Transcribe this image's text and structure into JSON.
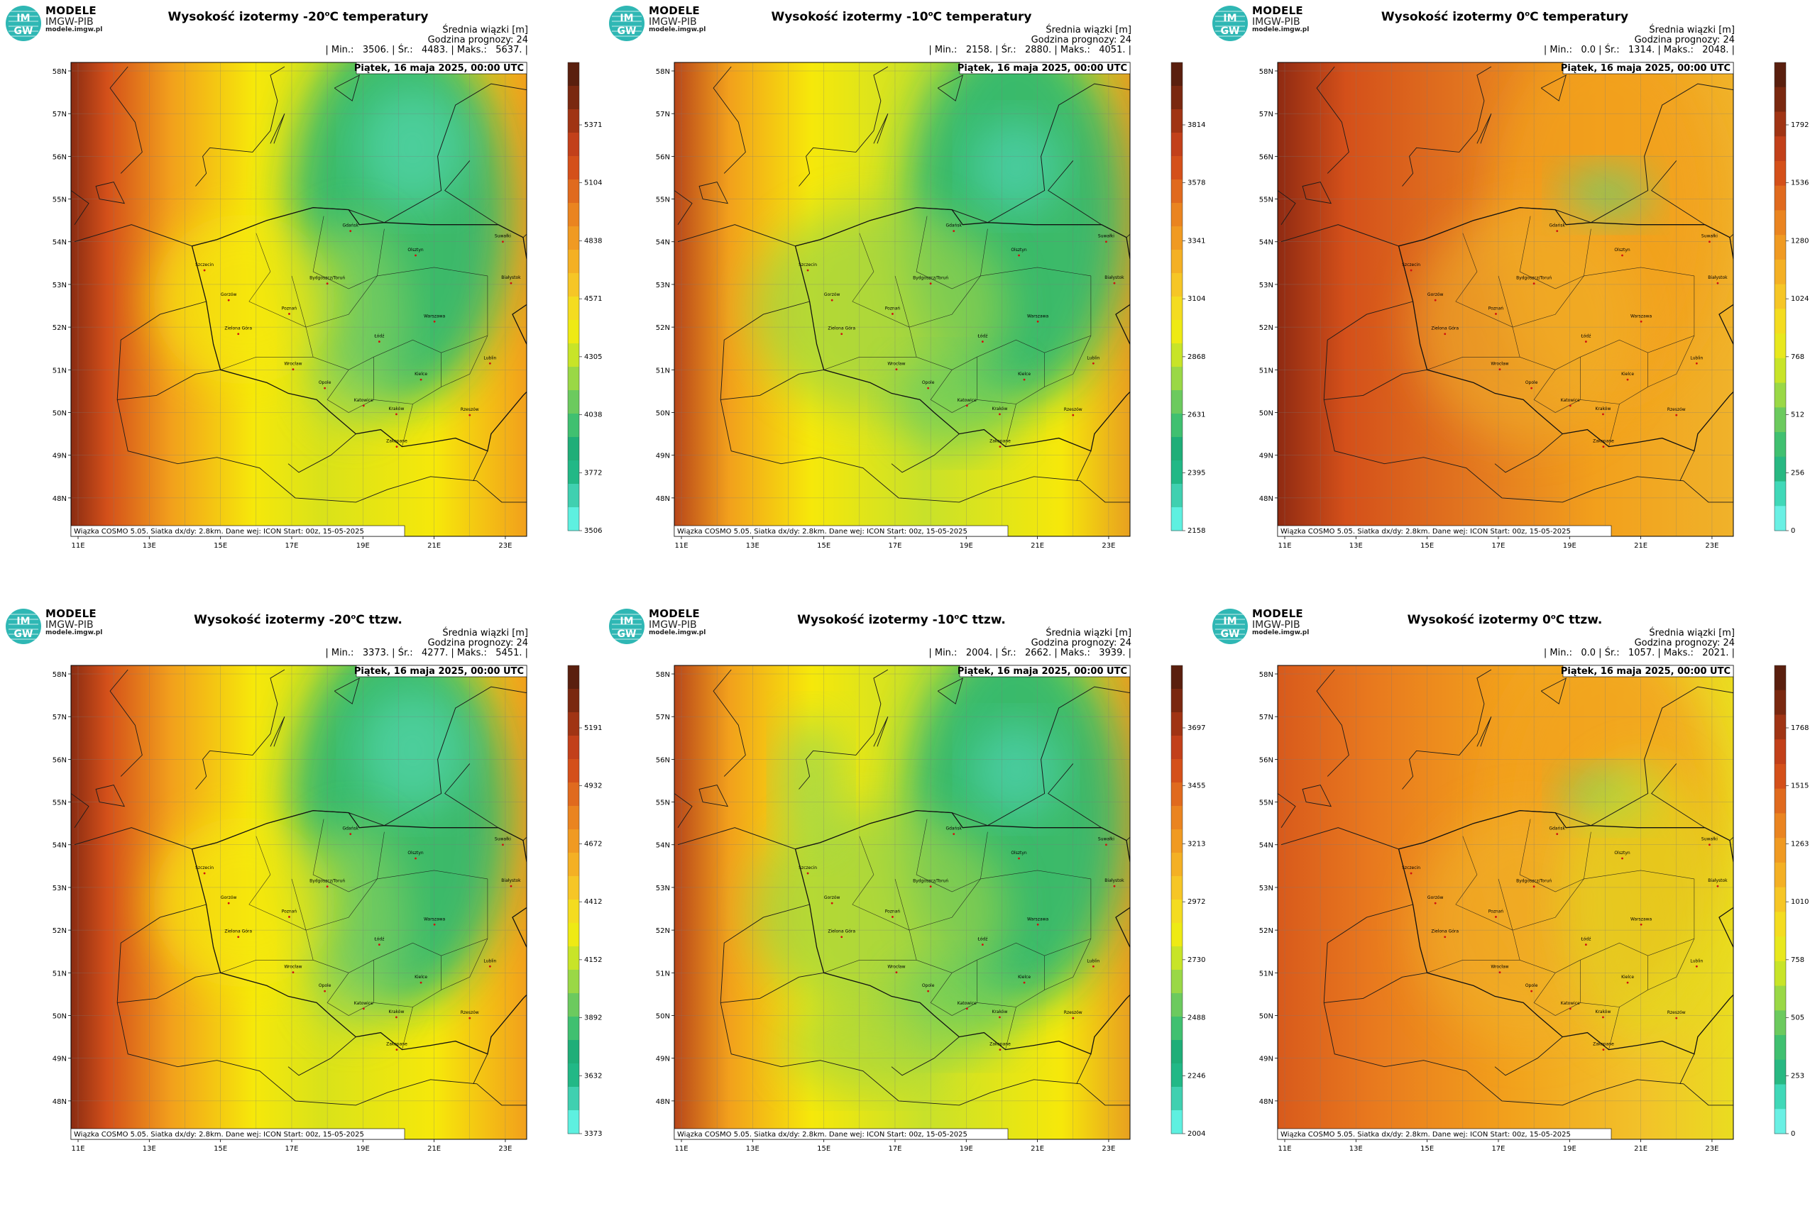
{
  "brand": {
    "line1": "MODELE",
    "line2": "IMGW-PIB",
    "line3": "modele.imgw.pl",
    "logo_top": "IM",
    "logo_bottom": "GW"
  },
  "common": {
    "subtitle": "Średnia wiązki [m]",
    "forecast_hour": "Godzina prognozy: 24",
    "date": "Piątek, 16 maja 2025, 00:00 UTC",
    "footer": "Wiązka COSMO 5.05. Siatka dx/dy: 2.8km. Dane wej: ICON Start: 00z, 15-05-2025",
    "lat_labels": [
      "58N",
      "57N",
      "56N",
      "55N",
      "54N",
      "53N",
      "52N",
      "51N",
      "50N",
      "49N",
      "48N"
    ],
    "lon_labels": [
      "11E",
      "13E",
      "15E",
      "17E",
      "19E",
      "21E",
      "23E"
    ],
    "cities": [
      {
        "name": "Gdańsk",
        "lon": 18.65,
        "lat": 54.35
      },
      {
        "name": "Olsztyn",
        "lon": 20.48,
        "lat": 53.78
      },
      {
        "name": "Suwałki",
        "lon": 22.93,
        "lat": 54.1
      },
      {
        "name": "Białystok",
        "lon": 23.16,
        "lat": 53.13
      },
      {
        "name": "Szczecin",
        "lon": 14.55,
        "lat": 53.43
      },
      {
        "name": "Bydgoszcz/Toruń",
        "lon": 18.0,
        "lat": 53.12
      },
      {
        "name": "Gorzów",
        "lon": 15.23,
        "lat": 52.73
      },
      {
        "name": "Poznań",
        "lon": 16.93,
        "lat": 52.41
      },
      {
        "name": "Warszawa",
        "lon": 21.01,
        "lat": 52.23
      },
      {
        "name": "Łódź",
        "lon": 19.46,
        "lat": 51.76
      },
      {
        "name": "Zielona Góra",
        "lon": 15.5,
        "lat": 51.94
      },
      {
        "name": "Lublin",
        "lon": 22.57,
        "lat": 51.25
      },
      {
        "name": "Wrocław",
        "lon": 17.04,
        "lat": 51.11
      },
      {
        "name": "Kielce",
        "lon": 20.63,
        "lat": 50.87
      },
      {
        "name": "Opole",
        "lon": 17.93,
        "lat": 50.67
      },
      {
        "name": "Rzeszów",
        "lon": 22.0,
        "lat": 50.04
      },
      {
        "name": "Katowice",
        "lon": 19.02,
        "lat": 50.26
      },
      {
        "name": "Kraków",
        "lon": 19.94,
        "lat": 50.06
      },
      {
        "name": "Zakopane",
        "lon": 19.95,
        "lat": 49.3
      }
    ]
  },
  "panels": [
    {
      "title_pre": "Wysokość izotermy -20",
      "title_post": "C temperatury",
      "stats_line": "| Min.:   3506. | Śr.:   4483. | Maks.:   5637. |",
      "scale_ticks": [
        "5371",
        "5104",
        "4838",
        "4571",
        "4305",
        "4038",
        "3772",
        "3506"
      ],
      "scale": "neg20"
    },
    {
      "title_pre": "Wysokość izotermy -10",
      "title_post": "C temperatury",
      "stats_line": "| Min.:   2158. | Śr.:   2880. | Maks.:   4051. |",
      "scale_ticks": [
        "3814",
        "3578",
        "3341",
        "3104",
        "2868",
        "2631",
        "2395",
        "2158"
      ],
      "scale": "neg10"
    },
    {
      "title_pre": "Wysokość izotermy 0",
      "title_post": "C temperatury",
      "stats_line": "| Min.:   0.0 | Śr.:   1314. | Maks.:   2048. |",
      "scale_ticks": [
        "1792",
        "1536",
        "1280",
        "1024",
        "768",
        "512",
        "256",
        "0"
      ],
      "scale": "zero"
    },
    {
      "title_pre": "Wysokość izotermy -20",
      "title_post": "C ttzw.",
      "stats_line": "| Min.:   3373. | Śr.:   4277. | Maks.:   5451. |",
      "scale_ticks": [
        "5191",
        "4932",
        "4672",
        "4412",
        "4152",
        "3892",
        "3632",
        "3373"
      ],
      "scale": "neg20"
    },
    {
      "title_pre": "Wysokość izotermy -10",
      "title_post": "C ttzw.",
      "stats_line": "| Min.:   2004. | Śr.:   2662. | Maks.:   3939. |",
      "scale_ticks": [
        "3697",
        "3455",
        "3213",
        "2972",
        "2730",
        "2488",
        "2246",
        "2004"
      ],
      "scale": "neg10"
    },
    {
      "title_pre": "Wysokość izotermy 0",
      "title_post": "C ttzw.",
      "stats_line": "| Min.:   0.0 | Śr.:   1057. | Maks.:   2021. |",
      "scale_ticks": [
        "1768",
        "1515",
        "1263",
        "1010",
        "758",
        "505",
        "253",
        "0"
      ],
      "scale": "zero"
    }
  ],
  "colors": {
    "cyan": "#5ef0e0",
    "green": "#1fb37a",
    "yellow": "#f6e80a",
    "orange": "#f2a01c",
    "red": "#d4501a",
    "brown": "#6a2410"
  }
}
